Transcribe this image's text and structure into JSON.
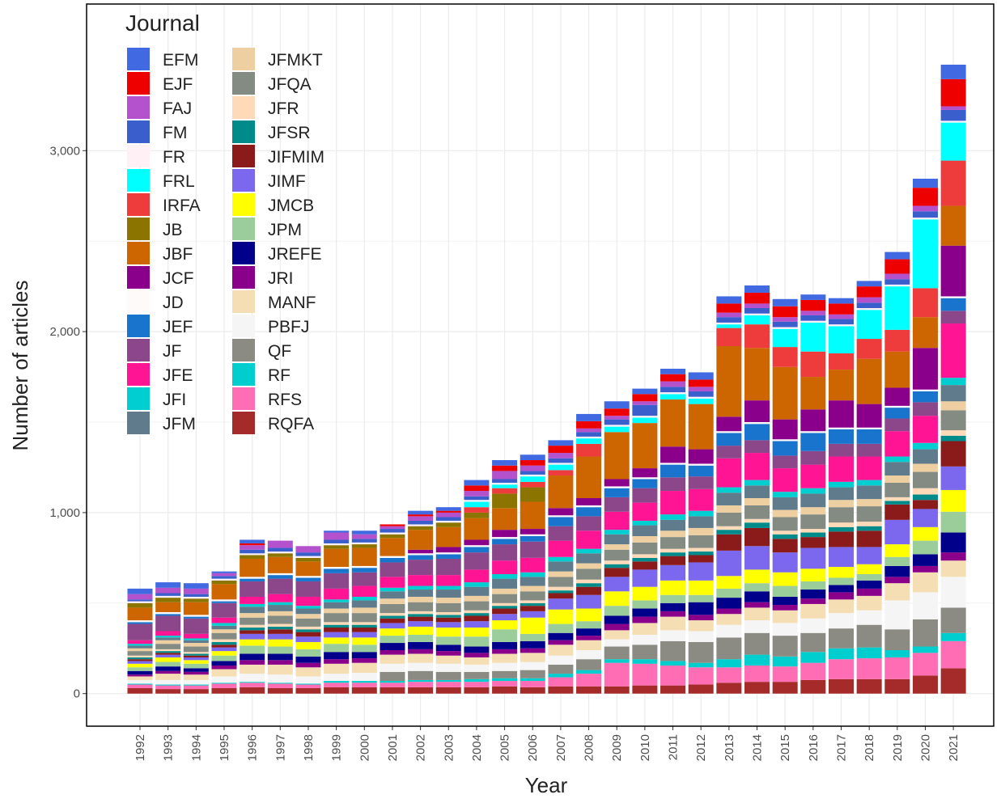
{
  "chart_data": {
    "type": "stacked_bar",
    "legend_title": "Journal",
    "x_label": "Year",
    "y_label": "Number of articles",
    "categories": [
      "1992",
      "1993",
      "1994",
      "1995",
      "1996",
      "1997",
      "1998",
      "1999",
      "2000",
      "2001",
      "2002",
      "2003",
      "2004",
      "2005",
      "2006",
      "2007",
      "2008",
      "2009",
      "2010",
      "2011",
      "2012",
      "2013",
      "2014",
      "2015",
      "2016",
      "2017",
      "2018",
      "2019",
      "2020",
      "2021"
    ],
    "ylim": [
      -180,
      3810
    ],
    "yticks": [
      {
        "value": 0,
        "label": "0"
      },
      {
        "value": 1000,
        "label": "1,000"
      },
      {
        "value": 2000,
        "label": "2,000"
      },
      {
        "value": 3000,
        "label": "3,000"
      }
    ],
    "grid": true,
    "legend_position": "top-left",
    "series": [
      {
        "name": "EFM",
        "color": "#4169e1",
        "values": [
          30,
          30,
          30,
          10,
          20,
          0,
          0,
          10,
          20,
          0,
          20,
          20,
          30,
          30,
          30,
          30,
          40,
          40,
          30,
          30,
          40,
          40,
          40,
          40,
          30,
          30,
          30,
          40,
          50,
          80
        ]
      },
      {
        "name": "EJF",
        "color": "#ee0000",
        "values": [
          0,
          0,
          0,
          0,
          10,
          0,
          0,
          0,
          0,
          10,
          10,
          10,
          30,
          30,
          30,
          40,
          40,
          40,
          40,
          40,
          40,
          50,
          60,
          60,
          60,
          60,
          60,
          80,
          100,
          150
        ]
      },
      {
        "name": "FAJ",
        "color": "#b452cd",
        "values": [
          30,
          30,
          30,
          15,
          25,
          40,
          35,
          40,
          25,
          15,
          25,
          25,
          30,
          45,
          30,
          30,
          20,
          20,
          20,
          30,
          25,
          25,
          25,
          25,
          25,
          25,
          30,
          30,
          30,
          20
        ]
      },
      {
        "name": "FM",
        "color": "#3a5fcd",
        "values": [
          10,
          15,
          15,
          15,
          20,
          20,
          20,
          20,
          20,
          20,
          20,
          20,
          20,
          20,
          20,
          25,
          25,
          30,
          60,
          30,
          30,
          30,
          30,
          30,
          30,
          30,
          30,
          30,
          35,
          60
        ]
      },
      {
        "name": "FR",
        "color": "#fff0f5",
        "values": [
          10,
          10,
          10,
          10,
          10,
          10,
          10,
          10,
          10,
          10,
          10,
          10,
          10,
          10,
          10,
          10,
          10,
          10,
          10,
          10,
          10,
          10,
          10,
          10,
          10,
          10,
          10,
          10,
          10,
          10
        ]
      },
      {
        "name": "FRL",
        "color": "#00ffff",
        "values": [
          0,
          0,
          0,
          0,
          0,
          0,
          0,
          0,
          0,
          0,
          0,
          0,
          30,
          20,
          30,
          30,
          30,
          30,
          30,
          30,
          30,
          20,
          50,
          100,
          160,
          150,
          160,
          240,
          380,
          210
        ]
      },
      {
        "name": "IRFA",
        "color": "#ee3b3b",
        "values": [
          0,
          0,
          0,
          0,
          0,
          0,
          0,
          0,
          0,
          0,
          0,
          0,
          30,
          30,
          30,
          30,
          70,
          0,
          0,
          0,
          0,
          100,
          130,
          110,
          140,
          90,
          110,
          120,
          160,
          250
        ]
      },
      {
        "name": "JB",
        "color": "#8b7500",
        "values": [
          25,
          25,
          20,
          20,
          20,
          20,
          20,
          20,
          20,
          20,
          20,
          25,
          30,
          80,
          80,
          0,
          0,
          0,
          0,
          0,
          0,
          0,
          0,
          0,
          0,
          0,
          0,
          0,
          0,
          0
        ]
      },
      {
        "name": "JBF",
        "color": "#cd6600",
        "values": [
          70,
          55,
          70,
          85,
          100,
          90,
          80,
          100,
          100,
          100,
          110,
          110,
          120,
          120,
          150,
          180,
          230,
          260,
          250,
          260,
          250,
          390,
          290,
          290,
          180,
          170,
          250,
          200,
          170,
          220
        ]
      },
      {
        "name": "JCF",
        "color": "#8b008b",
        "values": [
          0,
          0,
          0,
          0,
          0,
          0,
          0,
          0,
          0,
          0,
          20,
          30,
          30,
          40,
          30,
          40,
          40,
          40,
          50,
          90,
          80,
          80,
          120,
          110,
          120,
          150,
          130,
          100,
          230,
          280
        ]
      },
      {
        "name": "JD",
        "color": "#fffafa",
        "values": [
          10,
          10,
          10,
          10,
          10,
          10,
          10,
          10,
          10,
          10,
          10,
          10,
          10,
          10,
          10,
          10,
          10,
          10,
          10,
          10,
          10,
          10,
          10,
          10,
          10,
          10,
          10,
          10,
          10,
          10
        ]
      },
      {
        "name": "JEF",
        "color": "#1874cd",
        "values": [
          10,
          10,
          10,
          10,
          15,
          20,
          20,
          25,
          25,
          25,
          25,
          25,
          30,
          30,
          30,
          50,
          50,
          50,
          50,
          70,
          60,
          70,
          90,
          80,
          100,
          80,
          80,
          60,
          60,
          70
        ]
      },
      {
        "name": "JF",
        "color": "#8b4789",
        "values": [
          90,
          85,
          85,
          80,
          85,
          85,
          85,
          85,
          75,
          80,
          85,
          90,
          95,
          90,
          90,
          80,
          80,
          80,
          80,
          75,
          70,
          70,
          70,
          70,
          75,
          70,
          70,
          70,
          75,
          70
        ]
      },
      {
        "name": "JFE",
        "color": "#ff1493",
        "values": [
          20,
          25,
          25,
          30,
          40,
          45,
          50,
          60,
          60,
          60,
          60,
          60,
          70,
          75,
          80,
          90,
          100,
          100,
          100,
          130,
          120,
          160,
          150,
          130,
          130,
          140,
          130,
          140,
          150,
          300
        ]
      },
      {
        "name": "JFI",
        "color": "#00ced1",
        "values": [
          10,
          10,
          10,
          15,
          15,
          15,
          15,
          15,
          20,
          20,
          20,
          20,
          25,
          25,
          25,
          25,
          25,
          25,
          25,
          30,
          30,
          30,
          30,
          30,
          30,
          30,
          30,
          30,
          35,
          40
        ]
      },
      {
        "name": "JFM",
        "color": "#607b8b",
        "values": [
          15,
          15,
          15,
          20,
          35,
          35,
          30,
          35,
          40,
          40,
          40,
          45,
          50,
          55,
          50,
          55,
          55,
          55,
          60,
          60,
          65,
          70,
          70,
          70,
          75,
          70,
          75,
          75,
          80,
          90
        ]
      },
      {
        "name": "JFMKT",
        "color": "#eecfa1",
        "values": [
          15,
          20,
          20,
          20,
          25,
          25,
          25,
          25,
          30,
          30,
          30,
          30,
          30,
          30,
          30,
          30,
          30,
          30,
          35,
          35,
          40,
          40,
          40,
          40,
          40,
          40,
          40,
          40,
          45,
          50
        ]
      },
      {
        "name": "JFQA",
        "color": "#838b83",
        "values": [
          25,
          30,
          30,
          35,
          40,
          45,
          45,
          50,
          50,
          50,
          50,
          50,
          50,
          50,
          50,
          55,
          60,
          60,
          65,
          65,
          70,
          75,
          75,
          75,
          80,
          85,
          85,
          80,
          90,
          110
        ]
      },
      {
        "name": "JFR",
        "color": "#ffdab9",
        "values": [
          10,
          10,
          10,
          15,
          15,
          15,
          15,
          15,
          15,
          15,
          15,
          15,
          15,
          15,
          15,
          20,
          20,
          20,
          20,
          20,
          20,
          20,
          20,
          20,
          20,
          25,
          25,
          20,
          35,
          30
        ]
      },
      {
        "name": "JFSR",
        "color": "#008b8b",
        "values": [
          10,
          10,
          10,
          15,
          15,
          15,
          15,
          15,
          15,
          15,
          15,
          15,
          15,
          15,
          15,
          15,
          20,
          20,
          20,
          20,
          20,
          25,
          30,
          25,
          25,
          25,
          25,
          20,
          30,
          30
        ]
      },
      {
        "name": "JIFMIM",
        "color": "#8b1a1a",
        "values": [
          10,
          10,
          10,
          15,
          20,
          25,
          25,
          25,
          25,
          25,
          25,
          25,
          30,
          30,
          30,
          30,
          45,
          50,
          45,
          50,
          40,
          90,
          100,
          75,
          60,
          85,
          90,
          85,
          50,
          140
        ]
      },
      {
        "name": "JIMF",
        "color": "#7b68ee",
        "values": [
          15,
          15,
          15,
          20,
          30,
          30,
          30,
          30,
          30,
          30,
          30,
          30,
          35,
          35,
          35,
          60,
          75,
          80,
          95,
          85,
          100,
          140,
          130,
          110,
          115,
          110,
          95,
          135,
          100,
          130
        ]
      },
      {
        "name": "JMCB",
        "color": "#ffff00",
        "values": [
          20,
          25,
          20,
          25,
          35,
          40,
          40,
          35,
          40,
          40,
          45,
          50,
          50,
          50,
          90,
          80,
          70,
          80,
          75,
          80,
          80,
          70,
          75,
          75,
          70,
          60,
          55,
          70,
          75,
          120
        ]
      },
      {
        "name": "JPM",
        "color": "#9bcd9b",
        "values": [
          20,
          25,
          25,
          30,
          45,
          40,
          40,
          45,
          40,
          40,
          40,
          45,
          55,
          70,
          40,
          50,
          40,
          55,
          45,
          45,
          40,
          50,
          45,
          60,
          45,
          40,
          35,
          50,
          75,
          115
        ]
      },
      {
        "name": "JREFE",
        "color": "#00008b",
        "values": [
          20,
          25,
          20,
          25,
          35,
          35,
          35,
          40,
          35,
          40,
          40,
          35,
          35,
          40,
          40,
          40,
          40,
          45,
          45,
          45,
          70,
          60,
          60,
          45,
          50,
          40,
          45,
          60,
          65,
          110
        ]
      },
      {
        "name": "JRI",
        "color": "#8b008b",
        "values": [
          10,
          15,
          15,
          20,
          25,
          25,
          25,
          25,
          25,
          25,
          25,
          25,
          25,
          25,
          25,
          25,
          25,
          35,
          35,
          30,
          30,
          30,
          30,
          30,
          30,
          40,
          40,
          35,
          35,
          45
        ]
      },
      {
        "name": "MANF",
        "color": "#f5deb3",
        "values": [
          20,
          35,
          30,
          40,
          50,
          55,
          50,
          55,
          55,
          50,
          50,
          45,
          40,
          50,
          50,
          60,
          55,
          50,
          65,
          75,
          60,
          60,
          70,
          70,
          80,
          75,
          80,
          95,
          110,
          90
        ]
      },
      {
        "name": "PBFJ",
        "color": "#f5f5f5",
        "values": [
          20,
          25,
          25,
          35,
          45,
          45,
          40,
          40,
          45,
          45,
          45,
          45,
          40,
          45,
          45,
          50,
          50,
          40,
          55,
          60,
          60,
          70,
          70,
          70,
          80,
          85,
          80,
          160,
          150,
          170
        ]
      },
      {
        "name": "QF",
        "color": "#8b8b83",
        "values": [
          0,
          0,
          0,
          0,
          0,
          0,
          0,
          0,
          0,
          50,
          50,
          45,
          40,
          40,
          45,
          50,
          60,
          70,
          80,
          110,
          115,
          120,
          120,
          115,
          105,
          110,
          125,
          115,
          150,
          140
        ]
      },
      {
        "name": "RF",
        "color": "#00cdcd",
        "values": [
          5,
          5,
          5,
          5,
          5,
          5,
          5,
          10,
          10,
          10,
          10,
          10,
          15,
          15,
          15,
          20,
          20,
          20,
          25,
          25,
          25,
          45,
          60,
          55,
          60,
          60,
          60,
          40,
          35,
          45
        ]
      },
      {
        "name": "RFS",
        "color": "#ff6eb4",
        "values": [
          20,
          20,
          20,
          25,
          25,
          25,
          20,
          25,
          25,
          25,
          30,
          30,
          30,
          30,
          35,
          50,
          70,
          130,
          120,
          110,
          95,
          85,
          90,
          85,
          95,
          110,
          115,
          120,
          125,
          150
        ]
      },
      {
        "name": "RQFA",
        "color": "#a52a2a",
        "values": [
          30,
          25,
          25,
          30,
          35,
          30,
          30,
          35,
          35,
          35,
          35,
          35,
          35,
          40,
          35,
          40,
          40,
          40,
          45,
          45,
          50,
          60,
          65,
          65,
          75,
          80,
          80,
          80,
          100,
          140
        ]
      }
    ]
  }
}
